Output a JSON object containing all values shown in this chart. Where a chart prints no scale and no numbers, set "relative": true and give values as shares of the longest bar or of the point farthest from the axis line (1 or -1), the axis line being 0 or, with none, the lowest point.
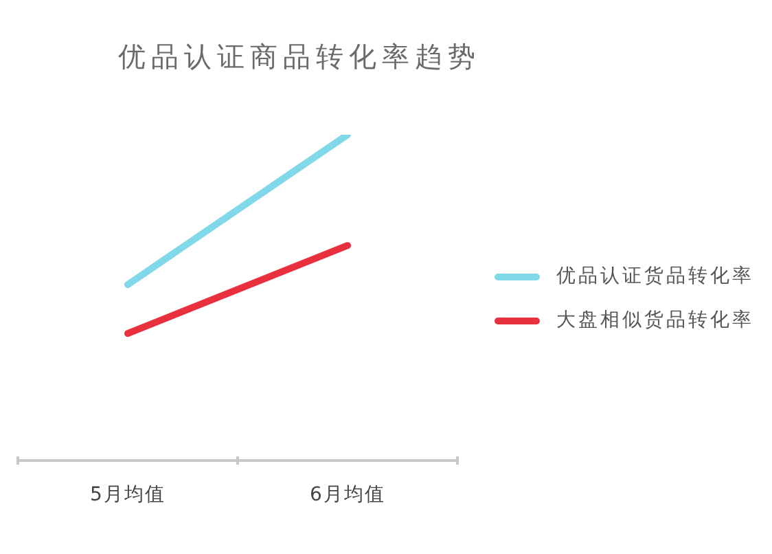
{
  "chart_data": {
    "type": "line",
    "title": "优品认证商品转化率趋势",
    "categories": [
      "5月均值",
      "6月均值"
    ],
    "relative": true,
    "series": [
      {
        "name": "优品认证货品转化率",
        "color": "#80d8e8",
        "values": [
          0.54,
          1
        ]
      },
      {
        "name": "大盘相似货品转化率",
        "color": "#e8303f",
        "values": [
          0.39,
          0.66
        ]
      }
    ],
    "legend": "right",
    "marker": "none"
  }
}
